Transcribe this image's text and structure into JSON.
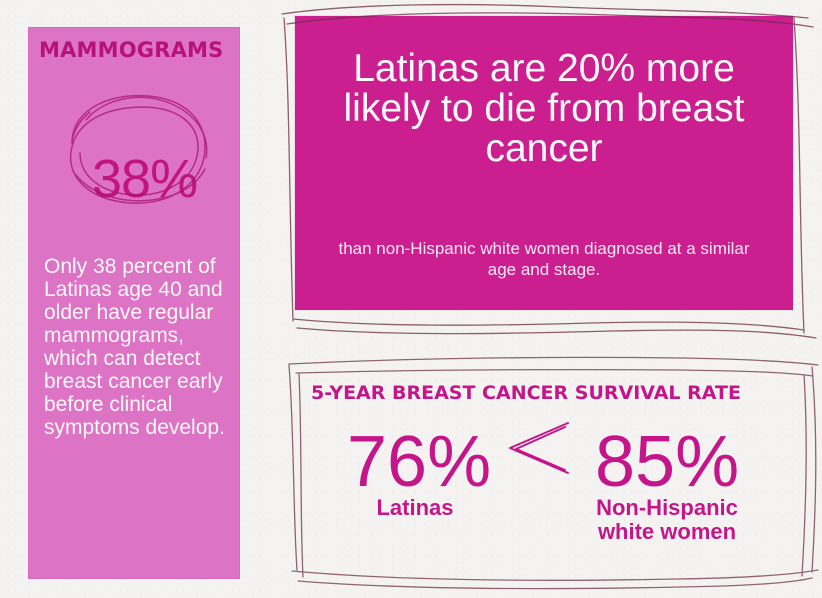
{
  "mammograms": {
    "title": "MAMMOGRAMS",
    "percent": "38%",
    "description": "Only 38 percent of Latinas age 40 and older have regular mammograms, which can detect breast cancer early before clinical symptoms develop."
  },
  "statement": {
    "headline": "Latinas are 20% more likely to die from breast cancer",
    "subtext": "than non-Hispanic white women diagnosed at a similar age and stage."
  },
  "survival": {
    "title": "5-YEAR BREAST CANCER SURVIVAL RATE",
    "latinas_value": "76%",
    "latinas_label": "Latinas",
    "white_value": "85%",
    "white_label": "Non-Hispanic white women"
  },
  "icons": {
    "comparison": "less-than-icon"
  },
  "colors": {
    "left_panel": "#dd73c4",
    "headline_box": "#cc1f8f",
    "accent_text": "#c4158a"
  }
}
